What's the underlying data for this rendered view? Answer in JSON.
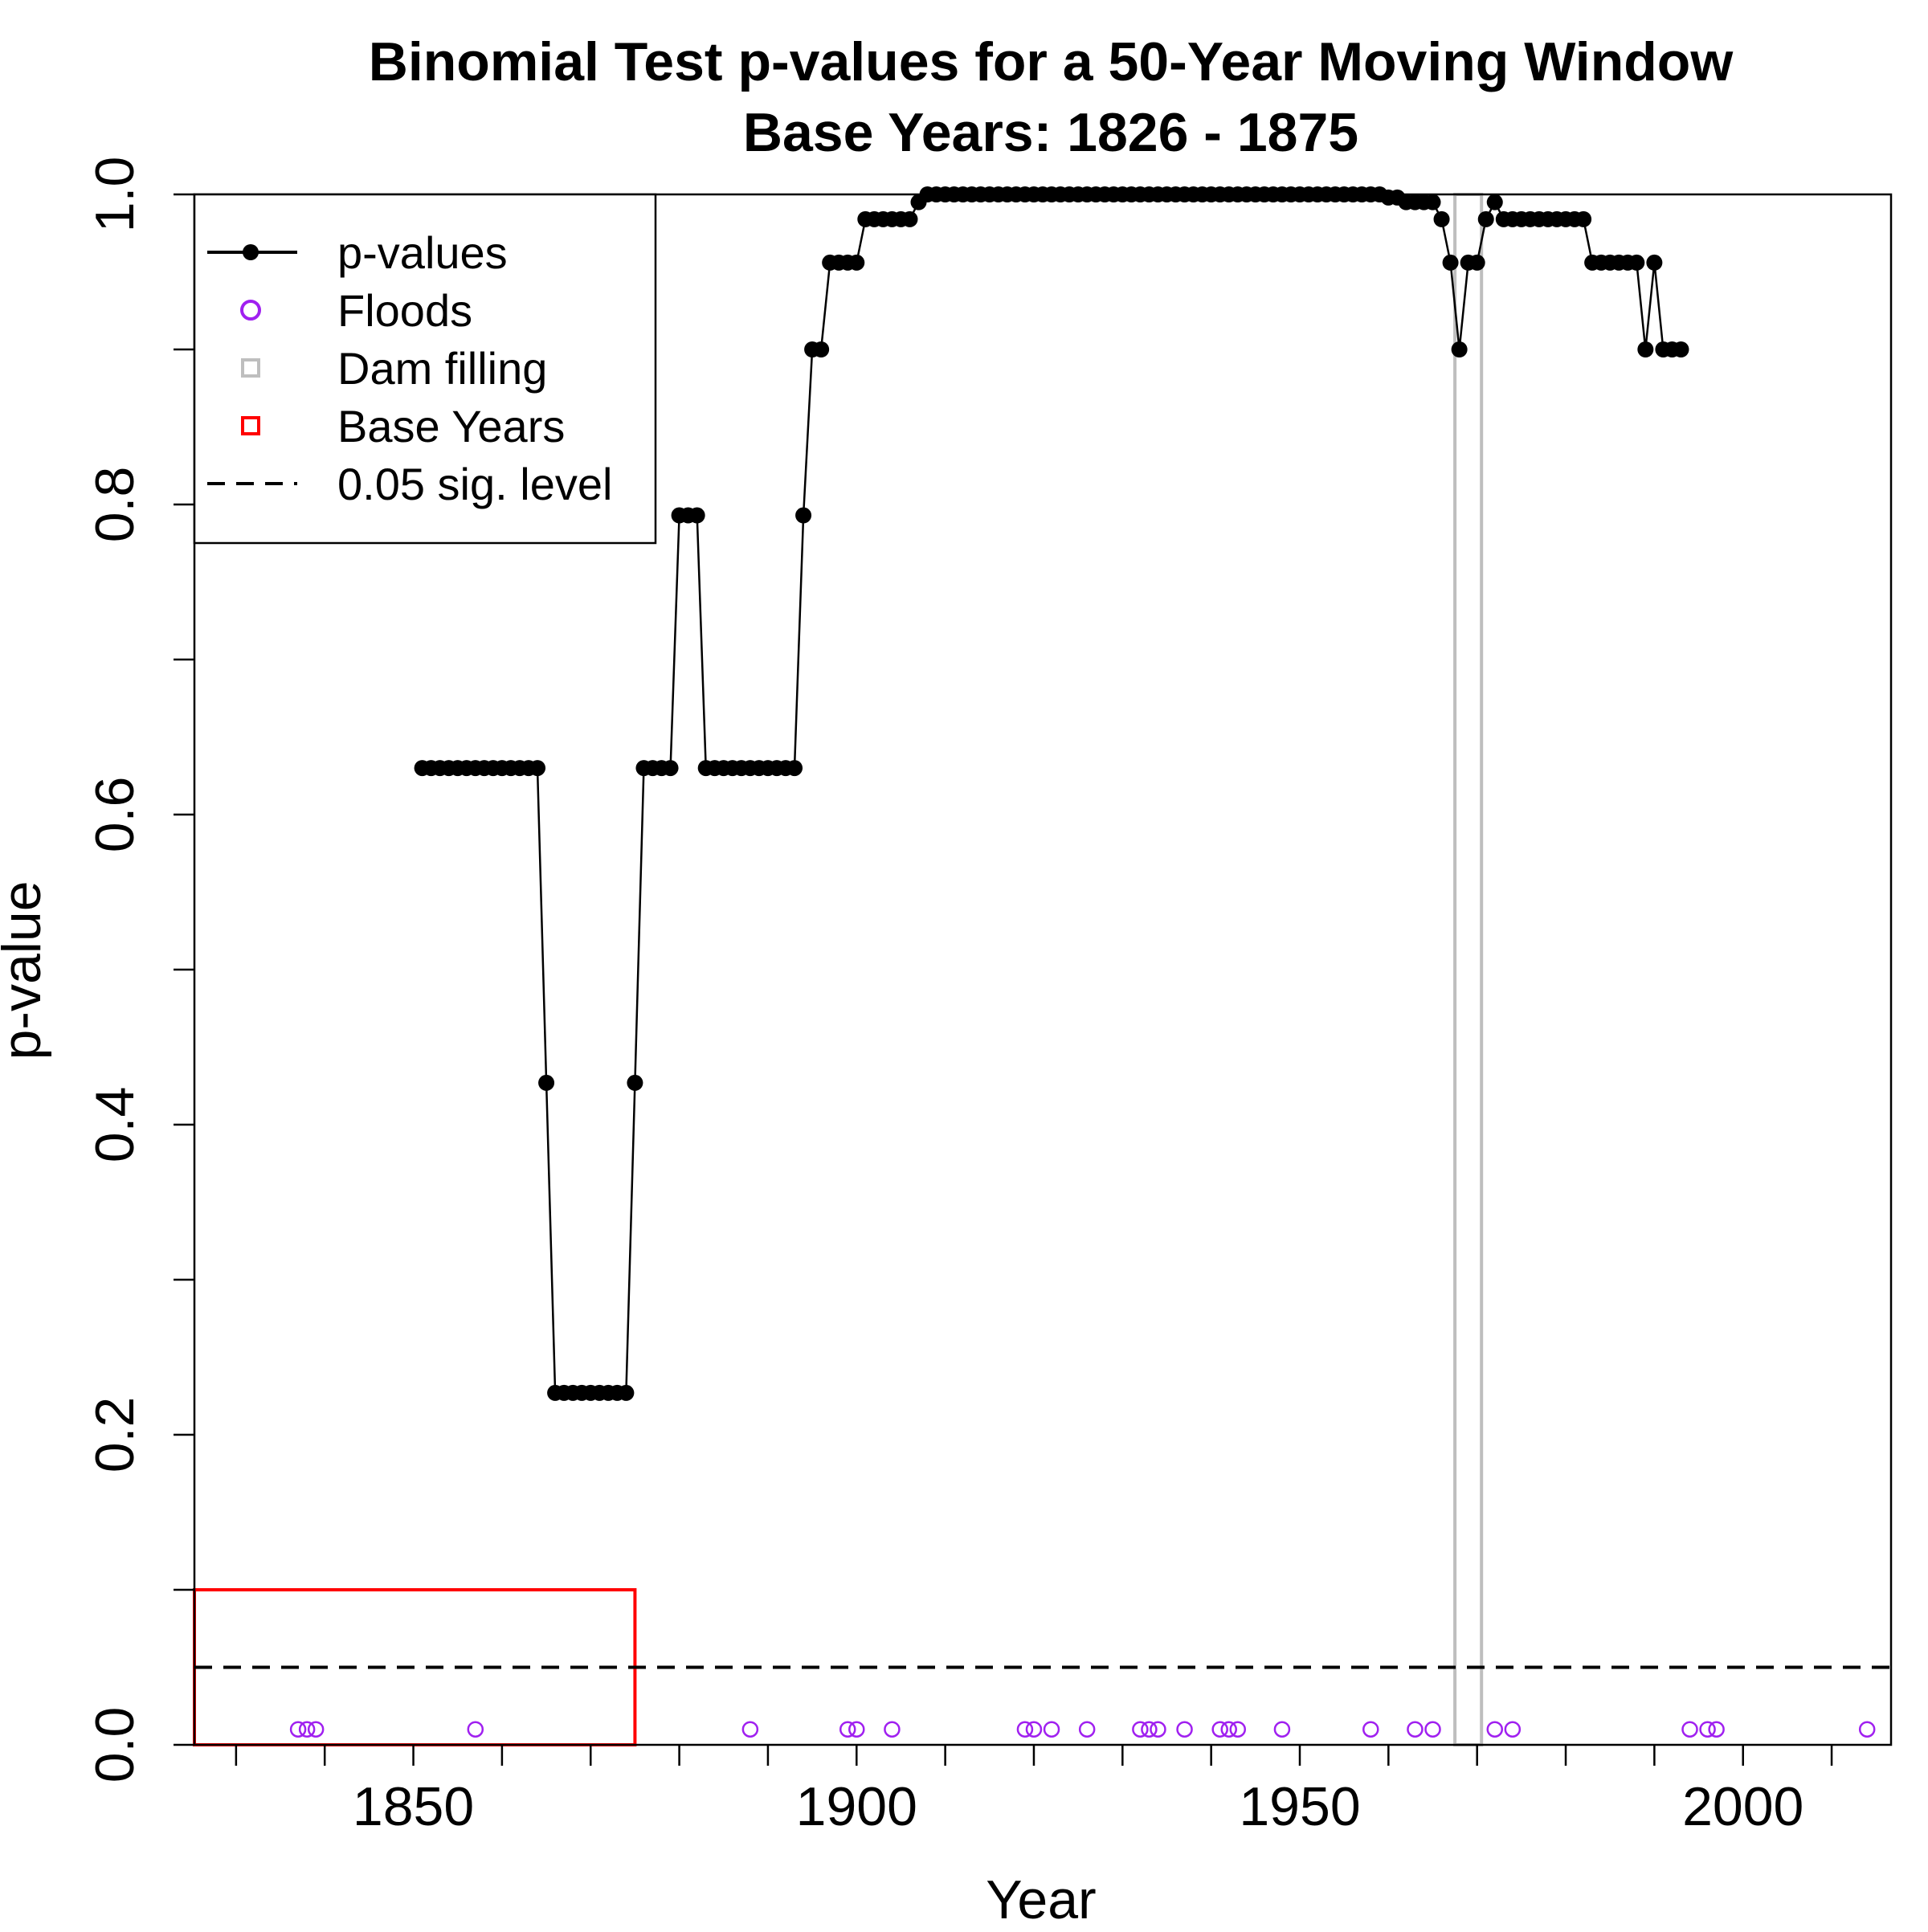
{
  "chart_data": {
    "type": "line",
    "title": "Binomial Test p-values for a 50-Year Moving Window",
    "subtitle": "Base Years: 1826 - 1875",
    "xlabel": "Year",
    "ylabel": "p-value",
    "xlim": [
      1825.3,
      2016.7
    ],
    "ylim": [
      0,
      1
    ],
    "x_ticks": [
      1850,
      1900,
      1950,
      2000
    ],
    "x_minor_ticks": [
      1830,
      1840,
      1860,
      1870,
      1880,
      1890,
      1910,
      1920,
      1930,
      1940,
      1960,
      1970,
      1980,
      1990,
      2010
    ],
    "y_ticks": [
      0.0,
      0.2,
      0.4,
      0.6,
      0.8,
      1.0
    ],
    "y_tick_labels": [
      "0.0",
      "0.2",
      "0.4",
      "0.6",
      "0.8",
      "1.0"
    ],
    "y_minor_ticks": [
      0.1,
      0.3,
      0.5,
      0.7,
      0.9
    ],
    "grid": false,
    "legend_position": "top-left",
    "legend": [
      {
        "label": "p-values",
        "symbol": "line-point",
        "color": "#000000"
      },
      {
        "label": "Floods",
        "symbol": "open-circle",
        "color": "#a020f0"
      },
      {
        "label": "Dam filling",
        "symbol": "open-square",
        "color": "#bebebe"
      },
      {
        "label": "Base Years",
        "symbol": "open-square",
        "color": "#ff0000"
      },
      {
        "label": "0.05 sig. level",
        "symbol": "dashed-line",
        "color": "#000000"
      }
    ],
    "series": [
      {
        "name": "p-values",
        "color": "#000000",
        "points": [
          [
            1851,
            0.63
          ],
          [
            1852,
            0.63
          ],
          [
            1853,
            0.63
          ],
          [
            1854,
            0.63
          ],
          [
            1855,
            0.63
          ],
          [
            1856,
            0.63
          ],
          [
            1857,
            0.63
          ],
          [
            1858,
            0.63
          ],
          [
            1859,
            0.63
          ],
          [
            1860,
            0.63
          ],
          [
            1861,
            0.63
          ],
          [
            1862,
            0.63
          ],
          [
            1863,
            0.63
          ],
          [
            1864,
            0.63
          ],
          [
            1865,
            0.427
          ],
          [
            1866,
            0.227
          ],
          [
            1867,
            0.227
          ],
          [
            1868,
            0.227
          ],
          [
            1869,
            0.227
          ],
          [
            1870,
            0.227
          ],
          [
            1871,
            0.227
          ],
          [
            1872,
            0.227
          ],
          [
            1873,
            0.227
          ],
          [
            1874,
            0.227
          ],
          [
            1875,
            0.427
          ],
          [
            1876,
            0.63
          ],
          [
            1877,
            0.63
          ],
          [
            1878,
            0.63
          ],
          [
            1879,
            0.63
          ],
          [
            1880,
            0.793
          ],
          [
            1881,
            0.793
          ],
          [
            1882,
            0.793
          ],
          [
            1883,
            0.63
          ],
          [
            1884,
            0.63
          ],
          [
            1885,
            0.63
          ],
          [
            1886,
            0.63
          ],
          [
            1887,
            0.63
          ],
          [
            1888,
            0.63
          ],
          [
            1889,
            0.63
          ],
          [
            1890,
            0.63
          ],
          [
            1891,
            0.63
          ],
          [
            1892,
            0.63
          ],
          [
            1893,
            0.63
          ],
          [
            1894,
            0.793
          ],
          [
            1895,
            0.9
          ],
          [
            1896,
            0.9
          ],
          [
            1897,
            0.956
          ],
          [
            1898,
            0.956
          ],
          [
            1899,
            0.956
          ],
          [
            1900,
            0.956
          ],
          [
            1901,
            0.984
          ],
          [
            1902,
            0.984
          ],
          [
            1903,
            0.984
          ],
          [
            1904,
            0.984
          ],
          [
            1905,
            0.984
          ],
          [
            1906,
            0.984
          ],
          [
            1907,
            0.995
          ],
          [
            1908,
            1.0
          ],
          [
            1909,
            1.0
          ],
          [
            1910,
            1.0
          ],
          [
            1911,
            1.0
          ],
          [
            1912,
            1.0
          ],
          [
            1913,
            1.0
          ],
          [
            1914,
            1.0
          ],
          [
            1915,
            1.0
          ],
          [
            1916,
            1.0
          ],
          [
            1917,
            1.0
          ],
          [
            1918,
            1.0
          ],
          [
            1919,
            1.0
          ],
          [
            1920,
            1.0
          ],
          [
            1921,
            1.0
          ],
          [
            1922,
            1.0
          ],
          [
            1923,
            1.0
          ],
          [
            1924,
            1.0
          ],
          [
            1925,
            1.0
          ],
          [
            1926,
            1.0
          ],
          [
            1927,
            1.0
          ],
          [
            1928,
            1.0
          ],
          [
            1929,
            1.0
          ],
          [
            1930,
            1.0
          ],
          [
            1931,
            1.0
          ],
          [
            1932,
            1.0
          ],
          [
            1933,
            1.0
          ],
          [
            1934,
            1.0
          ],
          [
            1935,
            1.0
          ],
          [
            1936,
            1.0
          ],
          [
            1937,
            1.0
          ],
          [
            1938,
            1.0
          ],
          [
            1939,
            1.0
          ],
          [
            1940,
            1.0
          ],
          [
            1941,
            1.0
          ],
          [
            1942,
            1.0
          ],
          [
            1943,
            1.0
          ],
          [
            1944,
            1.0
          ],
          [
            1945,
            1.0
          ],
          [
            1946,
            1.0
          ],
          [
            1947,
            1.0
          ],
          [
            1948,
            1.0
          ],
          [
            1949,
            1.0
          ],
          [
            1950,
            1.0
          ],
          [
            1951,
            1.0
          ],
          [
            1952,
            1.0
          ],
          [
            1953,
            1.0
          ],
          [
            1954,
            1.0
          ],
          [
            1955,
            1.0
          ],
          [
            1956,
            1.0
          ],
          [
            1957,
            1.0
          ],
          [
            1958,
            1.0
          ],
          [
            1959,
            1.0
          ],
          [
            1960,
            0.998
          ],
          [
            1961,
            0.998
          ],
          [
            1962,
            0.995
          ],
          [
            1963,
            0.995
          ],
          [
            1964,
            0.995
          ],
          [
            1965,
            0.995
          ],
          [
            1966,
            0.984
          ],
          [
            1967,
            0.956
          ],
          [
            1968,
            0.9
          ],
          [
            1969,
            0.956
          ],
          [
            1970,
            0.956
          ],
          [
            1971,
            0.984
          ],
          [
            1972,
            0.995
          ],
          [
            1973,
            0.984
          ],
          [
            1974,
            0.984
          ],
          [
            1975,
            0.984
          ],
          [
            1976,
            0.984
          ],
          [
            1977,
            0.984
          ],
          [
            1978,
            0.984
          ],
          [
            1979,
            0.984
          ],
          [
            1980,
            0.984
          ],
          [
            1981,
            0.984
          ],
          [
            1982,
            0.984
          ],
          [
            1983,
            0.956
          ],
          [
            1984,
            0.956
          ],
          [
            1985,
            0.956
          ],
          [
            1986,
            0.956
          ],
          [
            1987,
            0.956
          ],
          [
            1988,
            0.956
          ],
          [
            1989,
            0.9
          ],
          [
            1990,
            0.956
          ],
          [
            1991,
            0.9
          ],
          [
            1992,
            0.9
          ],
          [
            1993,
            0.9
          ]
        ]
      }
    ],
    "floods": {
      "name": "Floods",
      "color": "#a020f0",
      "y": 0.01,
      "x": [
        1837,
        1838,
        1839,
        1857,
        1888,
        1899,
        1900,
        1904,
        1919,
        1920,
        1922,
        1926,
        1932,
        1933,
        1934,
        1937,
        1941,
        1942,
        1943,
        1948,
        1958,
        1963,
        1965,
        1972,
        1974,
        1994,
        1996,
        1997,
        2014
      ]
    },
    "dam_filling": {
      "name": "Dam filling",
      "color": "#bebebe",
      "x_start": 1967.5,
      "x_end": 1970.5,
      "y_start": 0,
      "y_end": 1
    },
    "base_years": {
      "name": "Base Years",
      "color": "#ff0000",
      "x_start": 1825.3,
      "x_end": 1875,
      "y_start": 0,
      "y_end": 0.1
    },
    "sig_level": {
      "name": "0.05 sig. level",
      "value": 0.05,
      "color": "#000000"
    }
  }
}
